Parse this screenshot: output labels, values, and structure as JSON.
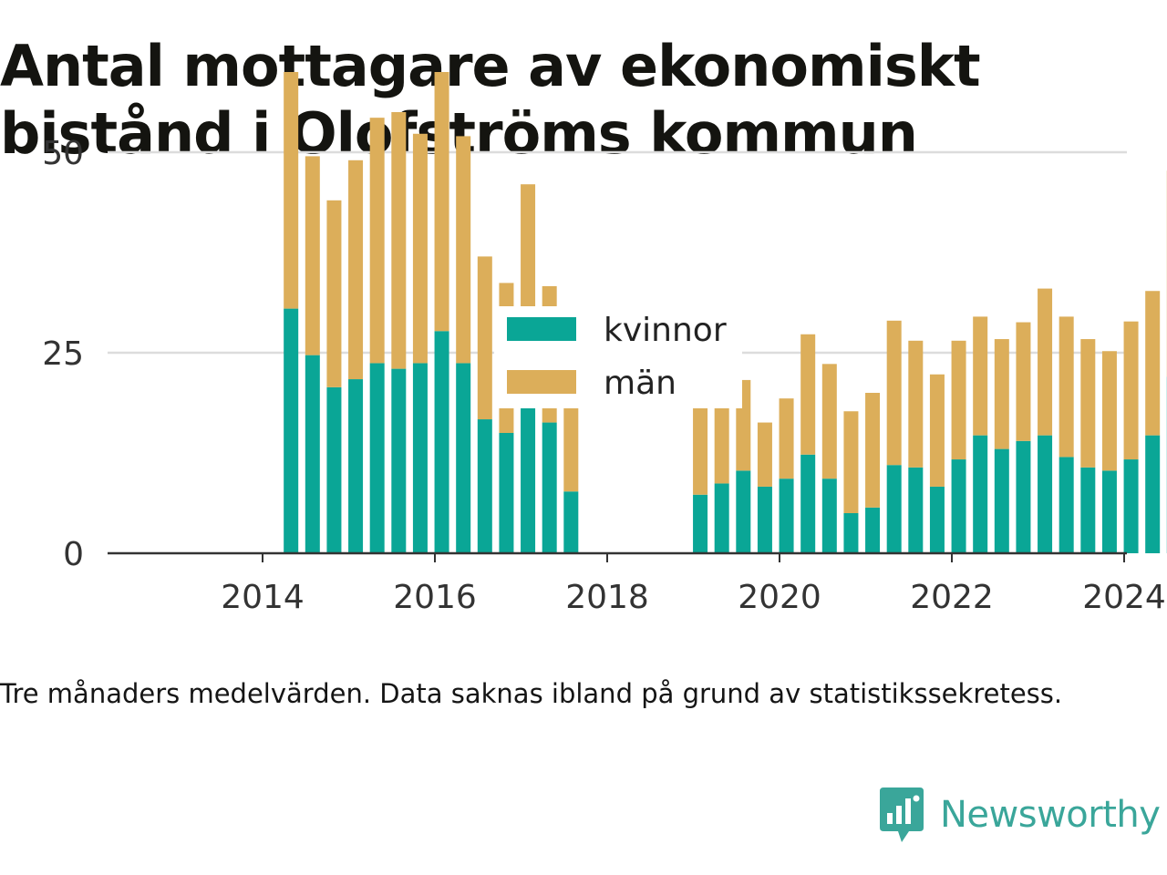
{
  "header": {
    "title_line1": "Antal mottagare av ekonomiskt",
    "title_line2": "bistånd i Olofströms kommun"
  },
  "footer": {
    "note": "Tre månaders medelvärden. Data saknas ibland på grund av statistikssekretess.",
    "brand": "Newsworthy",
    "brand_icon": "bar-chart-speech-bubble-icon"
  },
  "colors": {
    "kvinnor": "#0aa696",
    "man": "#dcae5a",
    "grid": "#dcdcdc",
    "axis": "#333333",
    "brand": "#3aa69a"
  },
  "chart_data": {
    "type": "bar",
    "stacked": true,
    "title": "Antal mottagare av ekonomiskt bistånd i Olofströms kommun",
    "xlabel": "",
    "ylabel": "",
    "x_ticks": [
      "2014",
      "2016",
      "2018",
      "2020",
      "2022",
      "2024"
    ],
    "y_ticks": [
      "0",
      "25",
      "50"
    ],
    "ylim": [
      0,
      60
    ],
    "grid": "horizontal",
    "legend_position": "top-center",
    "x_unit": "quarter midpoint (decimal year)",
    "x": [
      2014.33,
      2014.58,
      2014.83,
      2015.08,
      2015.33,
      2015.58,
      2015.83,
      2016.08,
      2016.33,
      2016.58,
      2016.83,
      2017.08,
      2017.33,
      2017.58,
      2019.08,
      2019.33,
      2019.58,
      2019.83,
      2020.08,
      2020.33,
      2020.58,
      2020.83,
      2021.08,
      2021.33,
      2021.58,
      2021.83,
      2022.08,
      2022.33,
      2022.58,
      2022.83,
      2023.08,
      2023.33,
      2023.58,
      2023.83,
      2024.08,
      2024.33,
      2024.58
    ],
    "series": [
      {
        "name": "kvinnor",
        "values": [
          30.5,
          24.7,
          20.7,
          21.7,
          23.7,
          23.0,
          23.7,
          27.7,
          23.7,
          16.7,
          15.0,
          21.3,
          16.3,
          7.7,
          7.3,
          8.7,
          10.3,
          8.3,
          9.3,
          12.3,
          9.3,
          5.0,
          5.7,
          11.0,
          10.7,
          8.3,
          11.7,
          14.7,
          13.0,
          14.0,
          14.7,
          12.0,
          10.7,
          10.3,
          11.7,
          14.7,
          22.0
        ]
      },
      {
        "name": "män",
        "values": [
          29.5,
          24.8,
          23.3,
          27.3,
          30.6,
          32.0,
          28.6,
          32.3,
          28.3,
          20.3,
          18.7,
          24.7,
          17.0,
          10.6,
          17.4,
          12.0,
          11.3,
          8.0,
          10.0,
          15.0,
          14.3,
          12.7,
          14.3,
          18.0,
          15.8,
          14.0,
          14.8,
          14.8,
          13.7,
          14.8,
          18.3,
          17.5,
          16.0,
          14.9,
          17.2,
          18.0,
          25.7
        ]
      }
    ]
  }
}
